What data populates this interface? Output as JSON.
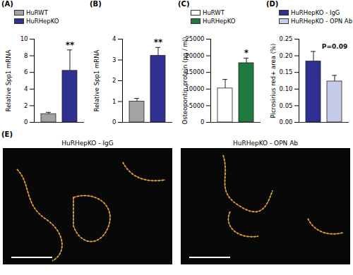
{
  "chart_data": [
    {
      "type": "bar",
      "title": "(A)",
      "ylabel": "Relative Spp1 mRNA",
      "categories": [
        "HuRWT",
        "HuRHepKO"
      ],
      "values": [
        1.0,
        6.2
      ],
      "errors": [
        0.2,
        2.5
      ],
      "colors": [
        "#a3a3a3",
        "#2e3192"
      ],
      "ylim": [
        0,
        10
      ],
      "yticks": [
        0,
        2,
        4,
        6,
        8,
        10
      ],
      "annotation": "**",
      "legend": "top",
      "tick_labels": "y"
    },
    {
      "type": "bar",
      "title": "(B)",
      "ylabel": "Relative Spp1 mRNA",
      "categories": [
        null,
        null
      ],
      "values": [
        1.0,
        3.2
      ],
      "errors": [
        0.15,
        0.4
      ],
      "colors": [
        "#a3a3a3",
        "#2e3192"
      ],
      "ylim": [
        0,
        4
      ],
      "yticks": [
        0,
        1,
        2,
        3,
        4
      ],
      "annotation": "**",
      "tick_labels": "y"
    },
    {
      "type": "bar",
      "title": "(C)",
      "ylabel": "Osteopontin protein (pg / ml)",
      "categories": [
        "HuRWT",
        "HuRHepKO"
      ],
      "values": [
        10200,
        17800
      ],
      "errors": [
        2700,
        1500
      ],
      "colors": [
        "#ffffff",
        "#1f7a3f"
      ],
      "ylim": [
        0,
        25000
      ],
      "yticks": [
        0,
        5000,
        10000,
        15000,
        20000,
        25000
      ],
      "annotation": "*",
      "legend": "top",
      "tick_labels": "y"
    },
    {
      "type": "bar",
      "title": "(D)",
      "ylabel": "Picrosirius red+ area (%)",
      "categories": [
        "HuRHepKO - IgG",
        "HuRHepKO - OPN Ab"
      ],
      "values": [
        0.183,
        0.123
      ],
      "errors": [
        0.03,
        0.018
      ],
      "colors": [
        "#2e3192",
        "#c5cbe8"
      ],
      "ylim": [
        0,
        0.25
      ],
      "yticks": [
        {
          "value": 0,
          "label": "0.00"
        },
        {
          "value": 0.05,
          "label": "0.05"
        },
        {
          "value": 0.1,
          "label": "0.10"
        },
        {
          "value": 0.15,
          "label": "0.15"
        },
        {
          "value": 0.2,
          "label": "0.20"
        },
        {
          "value": 0.25,
          "label": "0.25"
        }
      ],
      "annotation": "P=0.09",
      "legend": "top",
      "tick_labels": "y"
    }
  ],
  "panel_e": {
    "title": "(E)",
    "images": [
      {
        "title": "HuRHepKO - IgG"
      },
      {
        "title": "HuRHepKO - OPN Ab"
      }
    ]
  }
}
